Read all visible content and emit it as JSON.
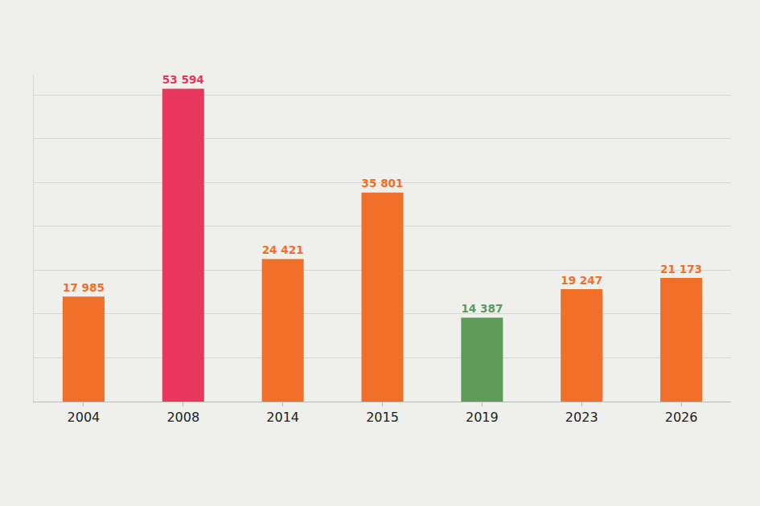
{
  "chart_data": {
    "type": "bar",
    "categories": [
      "2004",
      "2008",
      "2014",
      "2015",
      "2019",
      "2023",
      "2026"
    ],
    "values": [
      17985,
      53594,
      24421,
      35801,
      14387,
      19247,
      21173
    ],
    "value_labels": [
      "17 985",
      "53 594",
      "24 421",
      "35 801",
      "14 387",
      "19 247",
      "21 173"
    ],
    "colors": [
      "#f0702a",
      "#e8365d",
      "#f0702a",
      "#f0702a",
      "#5d9b5b",
      "#f0702a",
      "#f0702a"
    ],
    "ylim": [
      0,
      56000
    ],
    "yticks": [
      0,
      7500,
      15000,
      22500,
      30000,
      37500,
      45000,
      52500
    ],
    "grid": true,
    "data_labels": true,
    "tick_labels": "x"
  }
}
